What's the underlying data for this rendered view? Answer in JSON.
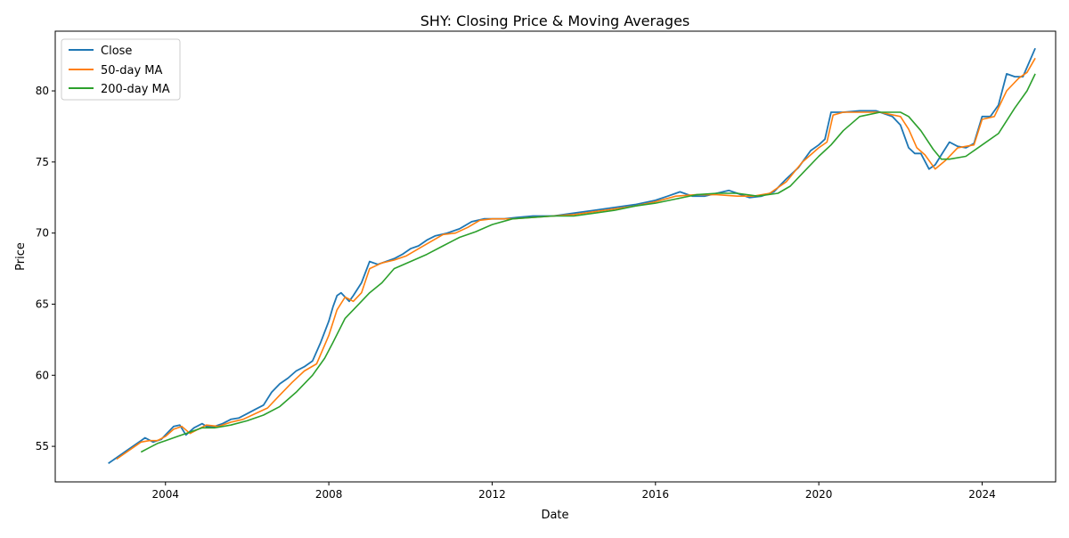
{
  "chart_data": {
    "type": "line",
    "title": "SHY: Closing Price & Moving Averages",
    "xlabel": "Date",
    "ylabel": "Price",
    "xlim": [
      2001.3,
      2025.8
    ],
    "ylim": [
      52.5,
      84.2
    ],
    "x_ticks": [
      2004,
      2008,
      2012,
      2016,
      2020,
      2024
    ],
    "x_tick_labels": [
      "2004",
      "2008",
      "2012",
      "2016",
      "2020",
      "2024"
    ],
    "y_ticks": [
      55,
      60,
      65,
      70,
      75,
      80
    ],
    "y_tick_labels": [
      "55",
      "60",
      "65",
      "70",
      "75",
      "80"
    ],
    "grid": false,
    "legend_position": "upper-left",
    "series": [
      {
        "name": "Close",
        "color": "#1f77b4",
        "x": [
          2002.6,
          2002.8,
          2003.0,
          2003.2,
          2003.4,
          2003.5,
          2003.7,
          2003.9,
          2004.0,
          2004.2,
          2004.35,
          2004.5,
          2004.7,
          2004.9,
          2005.0,
          2005.2,
          2005.4,
          2005.6,
          2005.8,
          2006.0,
          2006.2,
          2006.4,
          2006.6,
          2006.8,
          2007.0,
          2007.2,
          2007.4,
          2007.6,
          2007.8,
          2008.0,
          2008.1,
          2008.2,
          2008.3,
          2008.4,
          2008.5,
          2008.6,
          2008.8,
          2009.0,
          2009.2,
          2009.4,
          2009.6,
          2009.8,
          2010.0,
          2010.2,
          2010.4,
          2010.6,
          2010.9,
          2011.2,
          2011.5,
          2011.8,
          2012.0,
          2012.3,
          2012.6,
          2013.0,
          2013.5,
          2014.0,
          2014.5,
          2015.0,
          2015.5,
          2016.0,
          2016.3,
          2016.6,
          2016.9,
          2017.2,
          2017.5,
          2017.8,
          2018.0,
          2018.3,
          2018.6,
          2018.9,
          2019.2,
          2019.5,
          2019.8,
          2020.0,
          2020.15,
          2020.3,
          2020.6,
          2021.0,
          2021.4,
          2021.8,
          2022.0,
          2022.2,
          2022.35,
          2022.5,
          2022.7,
          2022.85,
          2023.0,
          2023.2,
          2023.4,
          2023.6,
          2023.8,
          2024.0,
          2024.2,
          2024.4,
          2024.6,
          2024.8,
          2025.0,
          2025.15,
          2025.3
        ],
        "values": [
          53.8,
          54.2,
          54.6,
          55.0,
          55.4,
          55.6,
          55.3,
          55.5,
          55.8,
          56.4,
          56.5,
          55.8,
          56.3,
          56.6,
          56.4,
          56.4,
          56.6,
          56.9,
          57.0,
          57.3,
          57.6,
          57.9,
          58.8,
          59.4,
          59.8,
          60.3,
          60.6,
          61.0,
          62.3,
          63.8,
          64.8,
          65.6,
          65.8,
          65.5,
          65.2,
          65.6,
          66.5,
          68.0,
          67.8,
          68.0,
          68.2,
          68.5,
          68.9,
          69.1,
          69.5,
          69.8,
          70.0,
          70.3,
          70.8,
          71.0,
          71.0,
          71.0,
          71.1,
          71.2,
          71.2,
          71.4,
          71.6,
          71.8,
          72.0,
          72.3,
          72.6,
          72.9,
          72.6,
          72.6,
          72.8,
          73.0,
          72.8,
          72.5,
          72.6,
          72.9,
          73.8,
          74.6,
          75.8,
          76.2,
          76.6,
          78.5,
          78.5,
          78.6,
          78.6,
          78.2,
          77.6,
          76.0,
          75.6,
          75.6,
          74.5,
          74.8,
          75.5,
          76.4,
          76.1,
          76.0,
          76.3,
          78.2,
          78.2,
          79.0,
          81.2,
          81.0,
          81.0,
          82.0,
          83.0
        ]
      },
      {
        "name": "50-day MA",
        "color": "#ff7f0e",
        "x": [
          2002.8,
          2003.0,
          2003.2,
          2003.4,
          2003.6,
          2003.8,
          2004.0,
          2004.2,
          2004.4,
          2004.6,
          2004.8,
          2005.0,
          2005.3,
          2005.6,
          2005.9,
          2006.2,
          2006.5,
          2006.8,
          2007.1,
          2007.4,
          2007.7,
          2008.0,
          2008.2,
          2008.4,
          2008.6,
          2008.8,
          2009.0,
          2009.3,
          2009.6,
          2009.9,
          2010.2,
          2010.5,
          2010.8,
          2011.1,
          2011.4,
          2011.7,
          2012.0,
          2012.5,
          2013.0,
          2013.5,
          2014.0,
          2014.5,
          2015.0,
          2015.5,
          2016.0,
          2016.5,
          2017.0,
          2017.5,
          2018.0,
          2018.4,
          2018.8,
          2019.2,
          2019.6,
          2020.0,
          2020.2,
          2020.35,
          2020.6,
          2021.0,
          2021.5,
          2022.0,
          2022.2,
          2022.4,
          2022.6,
          2022.85,
          2023.1,
          2023.4,
          2023.8,
          2024.0,
          2024.3,
          2024.6,
          2024.9,
          2025.1,
          2025.3
        ],
        "values": [
          54.1,
          54.5,
          54.9,
          55.3,
          55.4,
          55.4,
          55.7,
          56.2,
          56.4,
          55.9,
          56.2,
          56.5,
          56.4,
          56.7,
          56.9,
          57.3,
          57.7,
          58.6,
          59.5,
          60.3,
          60.8,
          62.8,
          64.6,
          65.5,
          65.2,
          65.8,
          67.5,
          67.9,
          68.1,
          68.4,
          68.9,
          69.4,
          69.9,
          70.0,
          70.4,
          70.9,
          71.0,
          71.0,
          71.1,
          71.2,
          71.3,
          71.5,
          71.7,
          71.9,
          72.2,
          72.6,
          72.7,
          72.7,
          72.6,
          72.6,
          72.8,
          73.6,
          75.0,
          76.0,
          76.4,
          78.3,
          78.5,
          78.5,
          78.5,
          78.2,
          77.3,
          76.0,
          75.5,
          74.5,
          75.1,
          76.0,
          76.2,
          78.0,
          78.2,
          80.0,
          80.9,
          81.3,
          82.3
        ]
      },
      {
        "name": "200-day MA",
        "color": "#2ca02c",
        "x": [
          2003.4,
          2003.6,
          2003.8,
          2004.0,
          2004.3,
          2004.6,
          2004.9,
          2005.2,
          2005.6,
          2006.0,
          2006.4,
          2006.8,
          2007.2,
          2007.6,
          2007.9,
          2008.1,
          2008.4,
          2008.7,
          2009.0,
          2009.3,
          2009.6,
          2010.0,
          2010.4,
          2010.8,
          2011.2,
          2011.6,
          2012.0,
          2012.5,
          2013.0,
          2013.5,
          2014.0,
          2014.5,
          2015.0,
          2015.5,
          2016.0,
          2016.5,
          2017.0,
          2017.5,
          2018.0,
          2018.5,
          2019.0,
          2019.3,
          2019.6,
          2020.0,
          2020.3,
          2020.6,
          2021.0,
          2021.5,
          2022.0,
          2022.2,
          2022.5,
          2022.8,
          2023.0,
          2023.2,
          2023.6,
          2024.0,
          2024.4,
          2024.8,
          2025.1,
          2025.3
        ],
        "values": [
          54.6,
          54.9,
          55.2,
          55.4,
          55.7,
          56.0,
          56.3,
          56.3,
          56.5,
          56.8,
          57.2,
          57.8,
          58.8,
          60.0,
          61.2,
          62.3,
          64.0,
          64.9,
          65.8,
          66.5,
          67.5,
          68.0,
          68.5,
          69.1,
          69.7,
          70.1,
          70.6,
          71.0,
          71.1,
          71.2,
          71.2,
          71.4,
          71.6,
          71.9,
          72.1,
          72.4,
          72.7,
          72.8,
          72.8,
          72.6,
          72.8,
          73.3,
          74.2,
          75.4,
          76.2,
          77.2,
          78.2,
          78.5,
          78.5,
          78.2,
          77.2,
          75.9,
          75.2,
          75.2,
          75.4,
          76.2,
          77.0,
          78.8,
          80.0,
          81.2
        ]
      }
    ]
  }
}
